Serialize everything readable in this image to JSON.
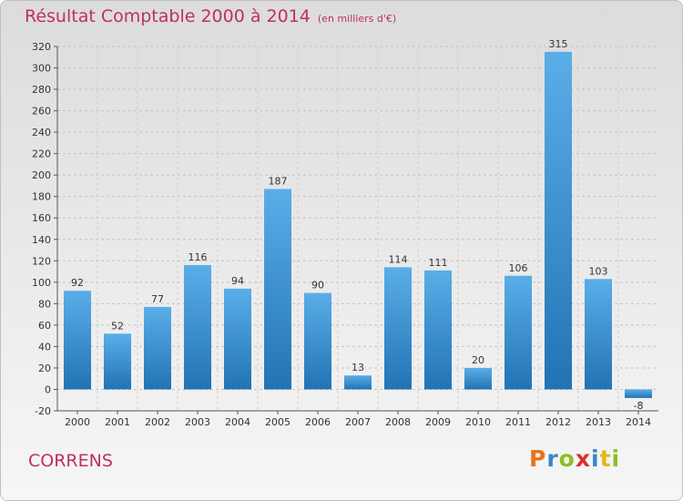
{
  "header": {
    "title": "Résultat Comptable 2000 à 2014",
    "unit": "(en milliers d'€)"
  },
  "footer": {
    "place": "CORRENS",
    "logo": {
      "text": "Proxiti",
      "colors": [
        "#e8731a",
        "#3a86c8",
        "#8cbf26",
        "#d9302e",
        "#3a86c8",
        "#e8b51a",
        "#8cbf26"
      ]
    }
  },
  "chart_data": {
    "type": "bar",
    "title": "Résultat Comptable 2000 à 2014",
    "subtitle": "(en milliers d'€)",
    "xlabel": "",
    "ylabel": "",
    "categories": [
      "2000",
      "2001",
      "2002",
      "2003",
      "2004",
      "2005",
      "2006",
      "2007",
      "2008",
      "2009",
      "2010",
      "2011",
      "2012",
      "2013",
      "2014"
    ],
    "values": [
      92,
      52,
      77,
      116,
      94,
      187,
      90,
      13,
      114,
      111,
      20,
      106,
      315,
      103,
      -8
    ],
    "ylim": [
      -20,
      320
    ],
    "yticks": [
      -20,
      0,
      20,
      40,
      60,
      80,
      100,
      120,
      140,
      160,
      180,
      200,
      220,
      240,
      260,
      280,
      300,
      320
    ],
    "grid": true,
    "bar_color": "#3a8fd4"
  }
}
